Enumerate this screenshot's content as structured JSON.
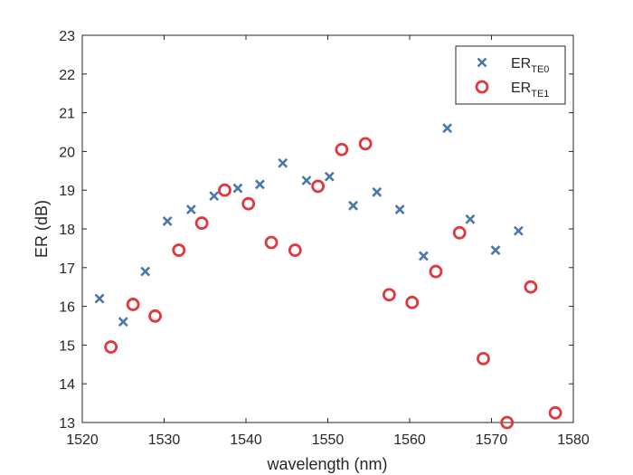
{
  "chart_data": {
    "type": "scatter",
    "xlabel": "wavelength (nm)",
    "ylabel": "ER (dB)",
    "xlim": [
      1520,
      1580
    ],
    "ylim": [
      13,
      23
    ],
    "xticks": [
      1520,
      1530,
      1540,
      1550,
      1560,
      1570,
      1580
    ],
    "yticks": [
      13,
      14,
      15,
      16,
      17,
      18,
      19,
      20,
      21,
      22,
      23
    ],
    "grid": false,
    "legend_position": "top-right",
    "series": [
      {
        "name": "ER",
        "name_sub": "TE0",
        "marker": "x",
        "color": "#4a78a8",
        "x": [
          1522.1,
          1525.0,
          1527.7,
          1530.4,
          1533.3,
          1536.1,
          1539.0,
          1541.7,
          1544.5,
          1547.4,
          1550.2,
          1553.1,
          1556.0,
          1558.8,
          1561.7,
          1564.6,
          1567.4,
          1570.5,
          1573.3
        ],
        "y": [
          16.2,
          15.6,
          16.9,
          18.2,
          18.5,
          18.85,
          19.05,
          19.15,
          19.7,
          19.25,
          19.35,
          18.6,
          18.95,
          18.5,
          17.3,
          20.6,
          18.25,
          17.45,
          17.95
        ]
      },
      {
        "name": "ER",
        "name_sub": "TE1",
        "marker": "o",
        "color": "#e0383e",
        "x": [
          1523.5,
          1526.2,
          1528.9,
          1531.8,
          1534.6,
          1537.4,
          1540.3,
          1543.1,
          1546.0,
          1548.8,
          1551.7,
          1554.6,
          1557.5,
          1560.3,
          1563.2,
          1566.1,
          1569.0,
          1571.9,
          1574.8,
          1577.8
        ],
        "y": [
          14.95,
          16.05,
          15.75,
          17.45,
          18.15,
          19.0,
          18.65,
          17.65,
          17.45,
          19.1,
          20.05,
          20.2,
          16.3,
          16.1,
          16.9,
          17.9,
          14.65,
          13.0,
          16.5,
          13.25
        ]
      }
    ]
  }
}
